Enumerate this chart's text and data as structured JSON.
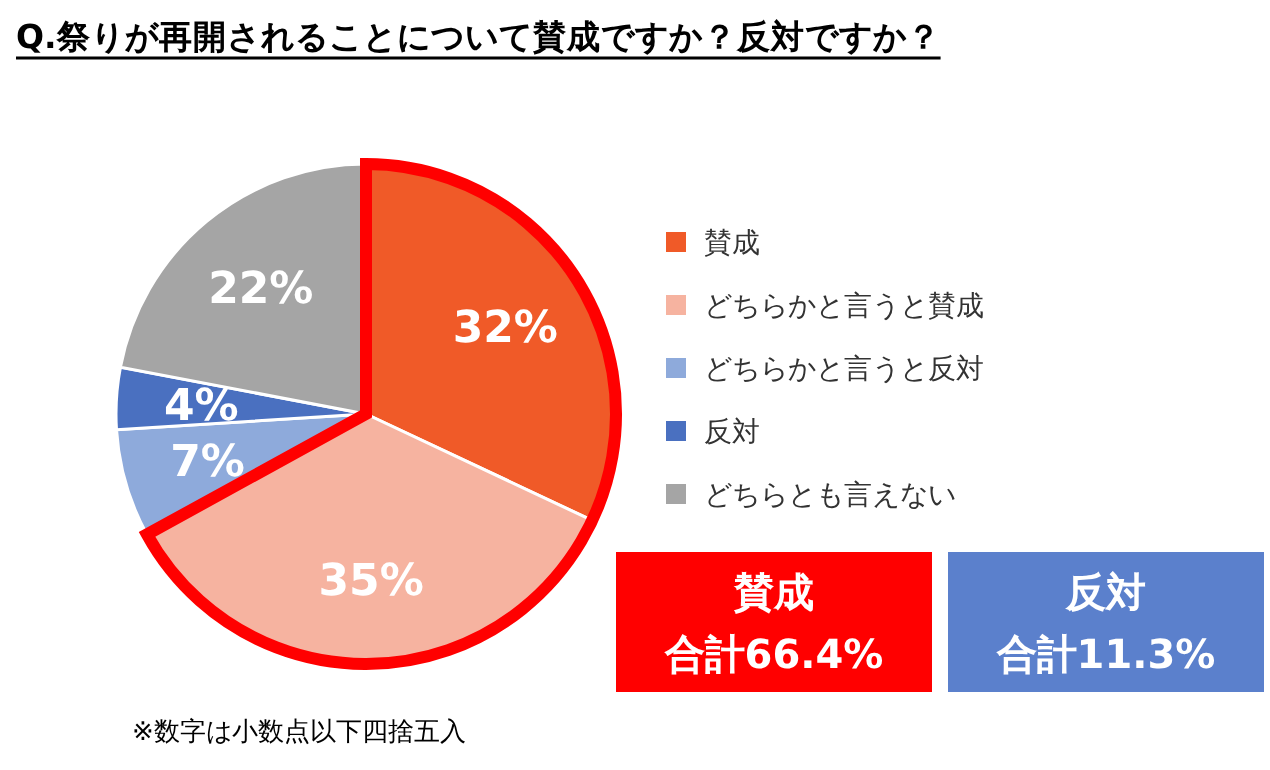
{
  "chart_data": {
    "type": "pie",
    "title": "Q.祭りが再開されることについて賛成ですか？反対ですか？",
    "categories": [
      "賛成",
      "どちらかと言うと賛成",
      "どちらかと言うと反対",
      "反対",
      "どちらとも言えない"
    ],
    "values": [
      32,
      35,
      7,
      4,
      22
    ],
    "colors": [
      "#f05a28",
      "#f6b3a0",
      "#8eaadb",
      "#4a70c0",
      "#a5a5a5"
    ],
    "value_labels": [
      "32%",
      "35%",
      "7%",
      "4%",
      "22%"
    ],
    "legend": "right",
    "annotations": [
      "賛成",
      "合計66.4%",
      "反対",
      "合計11.3%",
      "※数字は小数点以下四捨五入"
    ]
  }
}
